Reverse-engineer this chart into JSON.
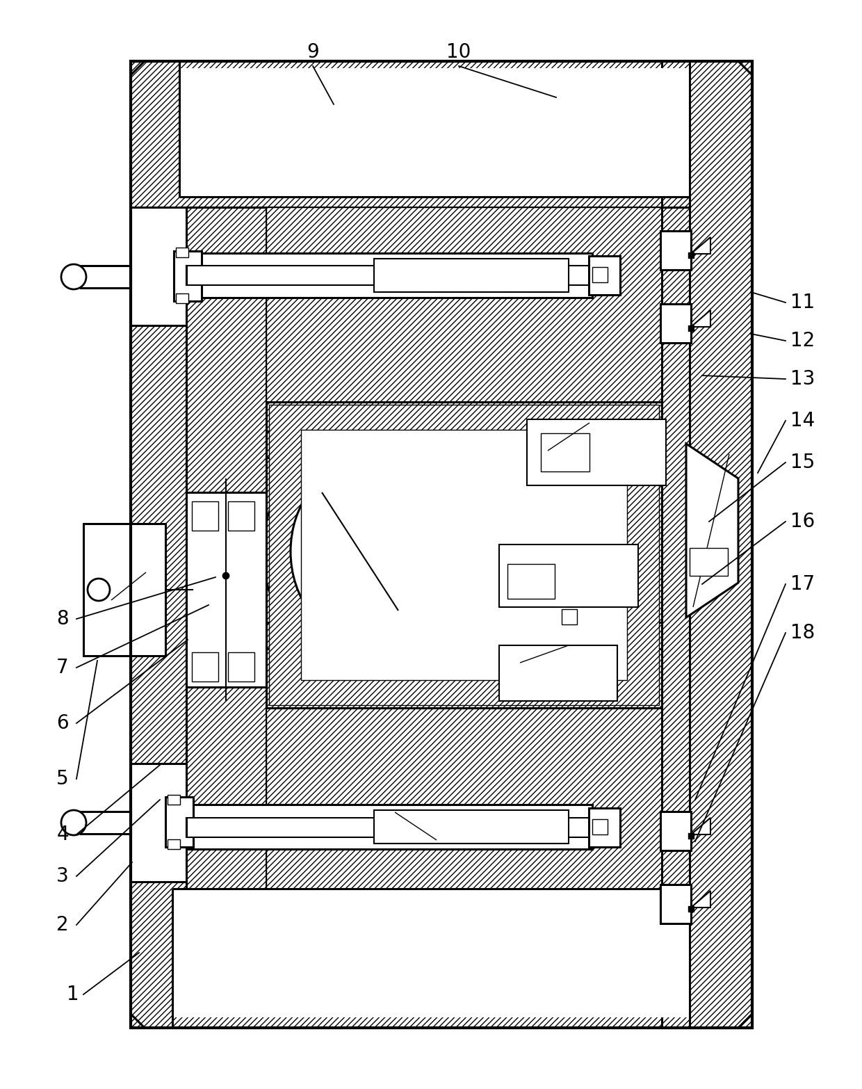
{
  "bg_color": "#ffffff",
  "lc": "#000000",
  "fig_w": 12.4,
  "fig_h": 15.66,
  "dpi": 100,
  "left_labels": [
    "1",
    "2",
    "3",
    "4",
    "5",
    "6",
    "7",
    "8"
  ],
  "right_labels": [
    "11",
    "12",
    "13",
    "14",
    "15",
    "16",
    "17",
    "18"
  ],
  "top_labels": [
    "9",
    "10"
  ],
  "label_fs": 20
}
